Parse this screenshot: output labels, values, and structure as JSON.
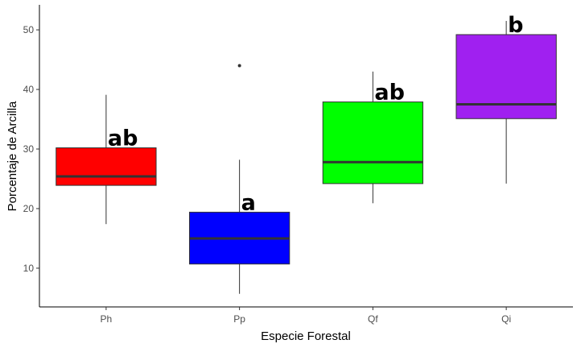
{
  "chart_data": {
    "type": "box",
    "xlabel": "Especie Forestal",
    "ylabel": "Porcentaje de Arcilla",
    "ylim": [
      3.5,
      54.2
    ],
    "yticks": [
      10,
      20,
      30,
      40,
      50
    ],
    "grid": false,
    "categories": [
      "Ph",
      "Pp",
      "Qf",
      "Qi"
    ],
    "boxes": [
      {
        "category": "Ph",
        "min": 17.4,
        "q1": 23.9,
        "median": 25.4,
        "q3": 30.2,
        "max": 39.1,
        "outliers": [],
        "color": "#ff0000",
        "label": "ab"
      },
      {
        "category": "Pp",
        "min": 5.7,
        "q1": 10.7,
        "median": 15.0,
        "q3": 19.4,
        "max": 28.2,
        "outliers": [
          44.0
        ],
        "color": "#0000ff",
        "label": "a"
      },
      {
        "category": "Qf",
        "min": 20.9,
        "q1": 24.2,
        "median": 27.8,
        "q3": 37.9,
        "max": 43.0,
        "outliers": [],
        "color": "#00ff00",
        "label": "ab"
      },
      {
        "category": "Qi",
        "min": 24.2,
        "q1": 35.1,
        "median": 37.5,
        "q3": 49.2,
        "max": 51.5,
        "outliers": [],
        "color": "#a020f0",
        "label": "b"
      }
    ]
  }
}
